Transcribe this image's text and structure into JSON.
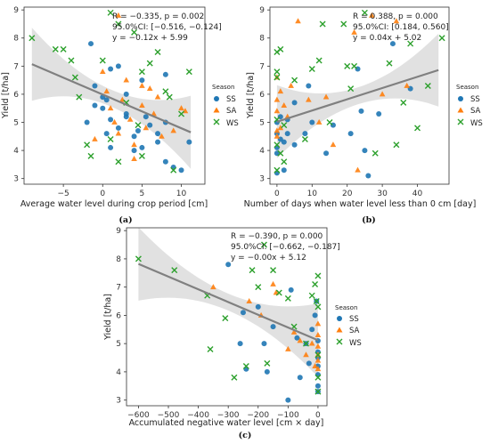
{
  "colors": {
    "SS": "#1f77b4",
    "SA": "#ff7f0e",
    "WS": "#2ca02c",
    "fit": "#808080",
    "band": "#c8c8c8"
  },
  "chart_data": [
    {
      "type": "scatter",
      "panel_label": "(a)",
      "xlabel": "Average water level during crop period [cm]",
      "ylabel": "Yield [t/ha]",
      "xlim": [
        -10,
        13
      ],
      "ylim": [
        2.8,
        9.1
      ],
      "xticks": [
        -5,
        0,
        5,
        10
      ],
      "yticks": [
        3,
        4,
        5,
        6,
        7,
        8,
        9
      ],
      "stats": [
        "R = −0.335, p = 0.002",
        "95.0%CI: [−0.516, −0.124]",
        "y = −0.12x + 5.99"
      ],
      "fit": {
        "slope": -0.12,
        "intercept": 5.99,
        "x_range": [
          -9,
          11.2
        ]
      },
      "legend": {
        "title": "Season",
        "entries": [
          "SS",
          "SA",
          "WS"
        ],
        "position": "right-center"
      },
      "series": [
        {
          "name": "SS",
          "marker": "circle",
          "points": [
            [
              -1.5,
              7.8
            ],
            [
              -1,
              6.3
            ],
            [
              -1,
              5.6
            ],
            [
              -2,
              5.0
            ],
            [
              0,
              5.9
            ],
            [
              0,
              5.5
            ],
            [
              0.5,
              5.8
            ],
            [
              0.5,
              4.6
            ],
            [
              1,
              6.9
            ],
            [
              1,
              5.1
            ],
            [
              1,
              4.1
            ],
            [
              2,
              7.0
            ],
            [
              2,
              4.8
            ],
            [
              3,
              6.0
            ],
            [
              3,
              5.3
            ],
            [
              3,
              5.2
            ],
            [
              4,
              4.5
            ],
            [
              4,
              4.0
            ],
            [
              4.5,
              4.7
            ],
            [
              5,
              6.5
            ],
            [
              5,
              4.1
            ],
            [
              5.5,
              5.2
            ],
            [
              6,
              4.9
            ],
            [
              7,
              4.6
            ],
            [
              7,
              4.3
            ],
            [
              8,
              6.7
            ],
            [
              8,
              5.0
            ],
            [
              8,
              3.6
            ],
            [
              9,
              3.4
            ],
            [
              10,
              3.3
            ],
            [
              11,
              4.3
            ]
          ]
        },
        {
          "name": "SA",
          "marker": "triangle",
          "points": [
            [
              -1,
              4.4
            ],
            [
              0,
              6.8
            ],
            [
              0.5,
              6.1
            ],
            [
              1,
              5.5
            ],
            [
              1.5,
              5.0
            ],
            [
              2,
              8.8
            ],
            [
              2,
              4.6
            ],
            [
              2.5,
              5.8
            ],
            [
              3,
              6.5
            ],
            [
              3.5,
              5.1
            ],
            [
              4,
              4.2
            ],
            [
              4,
              3.7
            ],
            [
              5,
              6.3
            ],
            [
              5,
              5.6
            ],
            [
              5.5,
              4.8
            ],
            [
              6,
              6.2
            ],
            [
              6.5,
              5.3
            ],
            [
              7,
              5.9
            ],
            [
              7.5,
              4.5
            ],
            [
              9,
              4.7
            ],
            [
              10,
              5.5
            ],
            [
              10.5,
              5.4
            ]
          ]
        },
        {
          "name": "WS",
          "marker": "x",
          "points": [
            [
              -9,
              8.0
            ],
            [
              -6,
              7.6
            ],
            [
              -5,
              7.6
            ],
            [
              -4,
              7.2
            ],
            [
              -3.5,
              6.6
            ],
            [
              -3,
              5.9
            ],
            [
              -2,
              4.2
            ],
            [
              -1.5,
              3.8
            ],
            [
              0,
              7.2
            ],
            [
              1,
              8.9
            ],
            [
              1,
              4.4
            ],
            [
              2,
              8.5
            ],
            [
              2,
              3.6
            ],
            [
              3,
              5.7
            ],
            [
              4,
              8.2
            ],
            [
              4.5,
              4.9
            ],
            [
              5,
              6.8
            ],
            [
              5,
              3.8
            ],
            [
              6,
              7.1
            ],
            [
              7,
              7.5
            ],
            [
              8,
              6.1
            ],
            [
              8.5,
              5.9
            ],
            [
              9,
              3.3
            ],
            [
              10,
              5.3
            ],
            [
              11,
              6.8
            ]
          ]
        }
      ]
    },
    {
      "type": "scatter",
      "panel_label": "(b)",
      "xlabel": "Number of days when water level less than 0 cm [day]",
      "ylabel": "Yield [t/ha]",
      "xlim": [
        -2,
        49
      ],
      "ylim": [
        2.8,
        9.1
      ],
      "xticks": [
        0,
        10,
        20,
        30,
        40
      ],
      "yticks": [
        3,
        4,
        5,
        6,
        7,
        8,
        9
      ],
      "stats": [
        "R = 0.388, p = 0.000",
        "95.0%CI: [0.184, 0.560]",
        "y = 0.04x + 5.02"
      ],
      "fit": {
        "slope": 0.04,
        "intercept": 5.02,
        "x_range": [
          0,
          46
        ]
      },
      "legend": {
        "title": "Season",
        "entries": [
          "SS",
          "SA",
          "WS"
        ],
        "position": "right-center"
      },
      "series": [
        {
          "name": "SS",
          "marker": "circle",
          "points": [
            [
              0,
              5.0
            ],
            [
              0,
              4.6
            ],
            [
              0,
              4.1
            ],
            [
              0,
              3.9
            ],
            [
              0,
              3.2
            ],
            [
              1,
              5.2
            ],
            [
              1,
              4.4
            ],
            [
              2,
              4.3
            ],
            [
              2,
              3.3
            ],
            [
              3,
              5.1
            ],
            [
              3,
              4.6
            ],
            [
              5,
              5.7
            ],
            [
              5,
              4.2
            ],
            [
              8,
              4.6
            ],
            [
              9,
              6.3
            ],
            [
              10,
              5.0
            ],
            [
              14,
              3.9
            ],
            [
              16,
              4.9
            ],
            [
              21,
              4.6
            ],
            [
              23,
              6.9
            ],
            [
              24,
              5.4
            ],
            [
              25,
              4.0
            ],
            [
              26,
              3.1
            ],
            [
              29,
              5.3
            ],
            [
              33,
              7.8
            ],
            [
              38,
              6.2
            ]
          ]
        },
        {
          "name": "SA",
          "marker": "triangle",
          "points": [
            [
              0,
              6.6
            ],
            [
              0,
              5.8
            ],
            [
              0,
              5.4
            ],
            [
              0,
              4.7
            ],
            [
              0,
              4.5
            ],
            [
              1,
              6.1
            ],
            [
              1,
              4.8
            ],
            [
              2,
              5.6
            ],
            [
              3,
              5.2
            ],
            [
              4,
              6.3
            ],
            [
              6,
              8.6
            ],
            [
              9,
              5.8
            ],
            [
              12,
              5.0
            ],
            [
              14,
              5.9
            ],
            [
              16,
              4.2
            ],
            [
              22,
              8.2
            ],
            [
              23,
              3.3
            ],
            [
              27,
              8.8
            ],
            [
              30,
              6.0
            ],
            [
              34,
              8.6
            ],
            [
              37,
              6.3
            ]
          ]
        },
        {
          "name": "WS",
          "marker": "x",
          "points": [
            [
              0,
              7.5
            ],
            [
              0,
              6.8
            ],
            [
              0,
              6.6
            ],
            [
              0,
              5.1
            ],
            [
              0,
              4.2
            ],
            [
              0,
              3.3
            ],
            [
              1,
              7.6
            ],
            [
              1,
              3.9
            ],
            [
              2,
              4.9
            ],
            [
              2,
              3.6
            ],
            [
              5,
              6.5
            ],
            [
              8,
              4.4
            ],
            [
              10,
              6.9
            ],
            [
              12,
              7.2
            ],
            [
              13,
              8.5
            ],
            [
              15,
              5.0
            ],
            [
              19,
              8.5
            ],
            [
              20,
              7.0
            ],
            [
              21,
              6.2
            ],
            [
              22,
              7.0
            ],
            [
              25,
              8.9
            ],
            [
              28,
              3.9
            ],
            [
              32,
              7.1
            ],
            [
              34,
              4.2
            ],
            [
              36,
              5.7
            ],
            [
              38,
              7.8
            ],
            [
              40,
              4.8
            ],
            [
              43,
              6.3
            ],
            [
              47,
              8.0
            ]
          ]
        }
      ]
    },
    {
      "type": "scatter",
      "panel_label": "(c)",
      "xlabel": "Accumulated negative water level [cm × day]",
      "ylabel": "Yield [t/ha]",
      "xlim": [
        -640,
        30
      ],
      "ylim": [
        2.8,
        9.1
      ],
      "xticks": [
        -600,
        -500,
        -400,
        -300,
        -200,
        -100,
        0
      ],
      "yticks": [
        3,
        4,
        5,
        6,
        7,
        8,
        9
      ],
      "stats": [
        "R = −0.390, p = 0.000",
        "95.0%CI: [−0.662, −0.187]",
        "y = −0.00x + 5.12"
      ],
      "fit": {
        "slope": -0.0045,
        "intercept": 5.12,
        "x_range": [
          -600,
          0
        ]
      },
      "legend": {
        "title": "Season",
        "entries": [
          "SS",
          "SA",
          "WS"
        ],
        "position": "right-center"
      },
      "series": [
        {
          "name": "SS",
          "marker": "circle",
          "points": [
            [
              -300,
              7.8
            ],
            [
              -260,
              5.0
            ],
            [
              -250,
              6.1
            ],
            [
              -240,
              4.1
            ],
            [
              -200,
              6.3
            ],
            [
              -180,
              5.0
            ],
            [
              -170,
              4.0
            ],
            [
              -150,
              5.6
            ],
            [
              -100,
              3.0
            ],
            [
              -90,
              6.9
            ],
            [
              -70,
              5.2
            ],
            [
              -60,
              3.8
            ],
            [
              -40,
              5.0
            ],
            [
              -30,
              4.3
            ],
            [
              -20,
              5.5
            ],
            [
              -10,
              6.0
            ],
            [
              0,
              5.1
            ],
            [
              0,
              4.7
            ],
            [
              0,
              4.5
            ],
            [
              0,
              4.2
            ],
            [
              0,
              3.9
            ],
            [
              0,
              3.5
            ],
            [
              0,
              3.3
            ],
            [
              -5,
              6.5
            ]
          ]
        },
        {
          "name": "SA",
          "marker": "triangle",
          "points": [
            [
              -350,
              7.0
            ],
            [
              -230,
              6.5
            ],
            [
              -190,
              6.0
            ],
            [
              -150,
              7.1
            ],
            [
              -140,
              6.8
            ],
            [
              -100,
              4.8
            ],
            [
              -80,
              5.4
            ],
            [
              -60,
              5.1
            ],
            [
              -40,
              4.6
            ],
            [
              -20,
              5.0
            ],
            [
              -10,
              4.2
            ],
            [
              0,
              5.7
            ],
            [
              0,
              5.3
            ],
            [
              0,
              4.9
            ],
            [
              0,
              4.6
            ],
            [
              0,
              4.4
            ],
            [
              0,
              4.1
            ]
          ]
        },
        {
          "name": "WS",
          "marker": "x",
          "points": [
            [
              -600,
              8.0
            ],
            [
              -480,
              7.6
            ],
            [
              -370,
              6.7
            ],
            [
              -360,
              4.8
            ],
            [
              -310,
              5.9
            ],
            [
              -280,
              3.8
            ],
            [
              -240,
              4.2
            ],
            [
              -220,
              7.6
            ],
            [
              -200,
              7.0
            ],
            [
              -180,
              8.5
            ],
            [
              -170,
              4.3
            ],
            [
              -150,
              7.6
            ],
            [
              -130,
              6.8
            ],
            [
              -100,
              6.6
            ],
            [
              -80,
              5.6
            ],
            [
              -40,
              5.0
            ],
            [
              -20,
              6.7
            ],
            [
              -10,
              7.1
            ],
            [
              -5,
              6.5
            ],
            [
              0,
              7.4
            ],
            [
              0,
              6.3
            ],
            [
              0,
              4.6
            ],
            [
              0,
              3.8
            ],
            [
              0,
              3.3
            ]
          ]
        }
      ]
    }
  ]
}
